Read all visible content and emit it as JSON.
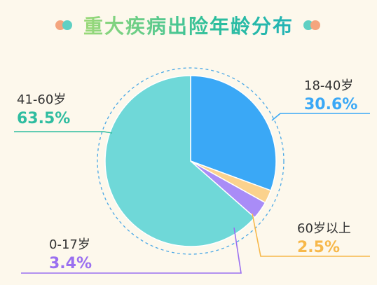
{
  "title": "重大疾病出险年龄分布",
  "colors": {
    "background": "#fdf8ec",
    "dot_orange": "#f4a57e",
    "dot_teal": "#5fd0c3"
  },
  "chart_data": {
    "type": "pie",
    "title": "重大疾病出险年龄分布",
    "start_angle_deg": 0,
    "direction": "clockwise",
    "slices": [
      {
        "label": "18-40岁",
        "value": 30.6,
        "display": "30.6%",
        "color": "#3aa8f6"
      },
      {
        "label": "60岁以上",
        "value": 2.5,
        "display": "2.5%",
        "color": "#fbd28d",
        "value_color": "#f7b84a"
      },
      {
        "label": "0-17岁",
        "value": 3.4,
        "display": "3.4%",
        "color": "#a98cf7",
        "value_color": "#9a6ff0"
      },
      {
        "label": "41-60岁",
        "value": 63.5,
        "display": "63.5%",
        "color": "#6fd8d8",
        "value_color": "#2fbda0"
      }
    ]
  }
}
